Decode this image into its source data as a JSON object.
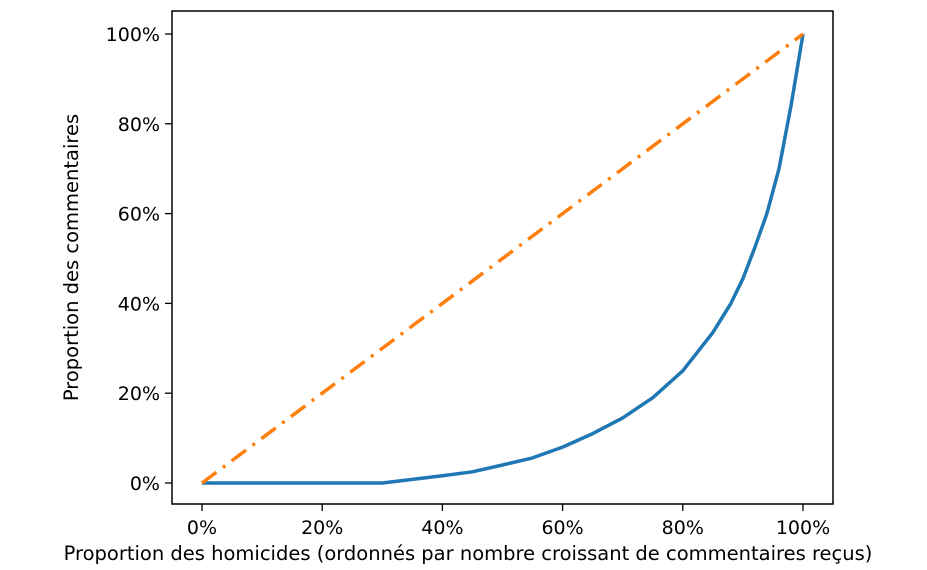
{
  "chart_data": {
    "type": "line",
    "title": "",
    "xlabel": "Proportion des homicides (ordonnés par nombre croissant de commentaires reçus)",
    "ylabel": "Proportion des commentaires",
    "xlim": [
      0,
      1
    ],
    "ylim": [
      0,
      1
    ],
    "grid": false,
    "xticks": [
      {
        "value": 0.0,
        "label": "0%"
      },
      {
        "value": 0.2,
        "label": "20%"
      },
      {
        "value": 0.4,
        "label": "40%"
      },
      {
        "value": 0.6,
        "label": "60%"
      },
      {
        "value": 0.8,
        "label": "80%"
      },
      {
        "value": 1.0,
        "label": "100%"
      }
    ],
    "yticks": [
      {
        "value": 0.0,
        "label": "0%"
      },
      {
        "value": 0.2,
        "label": "20%"
      },
      {
        "value": 0.4,
        "label": "40%"
      },
      {
        "value": 0.6,
        "label": "60%"
      },
      {
        "value": 0.8,
        "label": "80%"
      },
      {
        "value": 1.0,
        "label": "100%"
      }
    ],
    "series": [
      {
        "color": "#1f77b4",
        "style": "solid",
        "x": [
          0,
          0.1,
          0.2,
          0.3,
          0.35,
          0.4,
          0.45,
          0.5,
          0.55,
          0.6,
          0.65,
          0.7,
          0.75,
          0.8,
          0.85,
          0.88,
          0.9,
          0.92,
          0.94,
          0.96,
          0.98,
          0.99,
          1.0
        ],
        "y": [
          0,
          0,
          0,
          0,
          0.008,
          0.016,
          0.025,
          0.04,
          0.056,
          0.08,
          0.11,
          0.145,
          0.19,
          0.25,
          0.335,
          0.4,
          0.455,
          0.525,
          0.6,
          0.7,
          0.84,
          0.92,
          1.0
        ]
      },
      {
        "color": "#ff7f0e",
        "style": "dashdot",
        "x": [
          0,
          1
        ],
        "y": [
          0,
          1
        ]
      }
    ]
  }
}
